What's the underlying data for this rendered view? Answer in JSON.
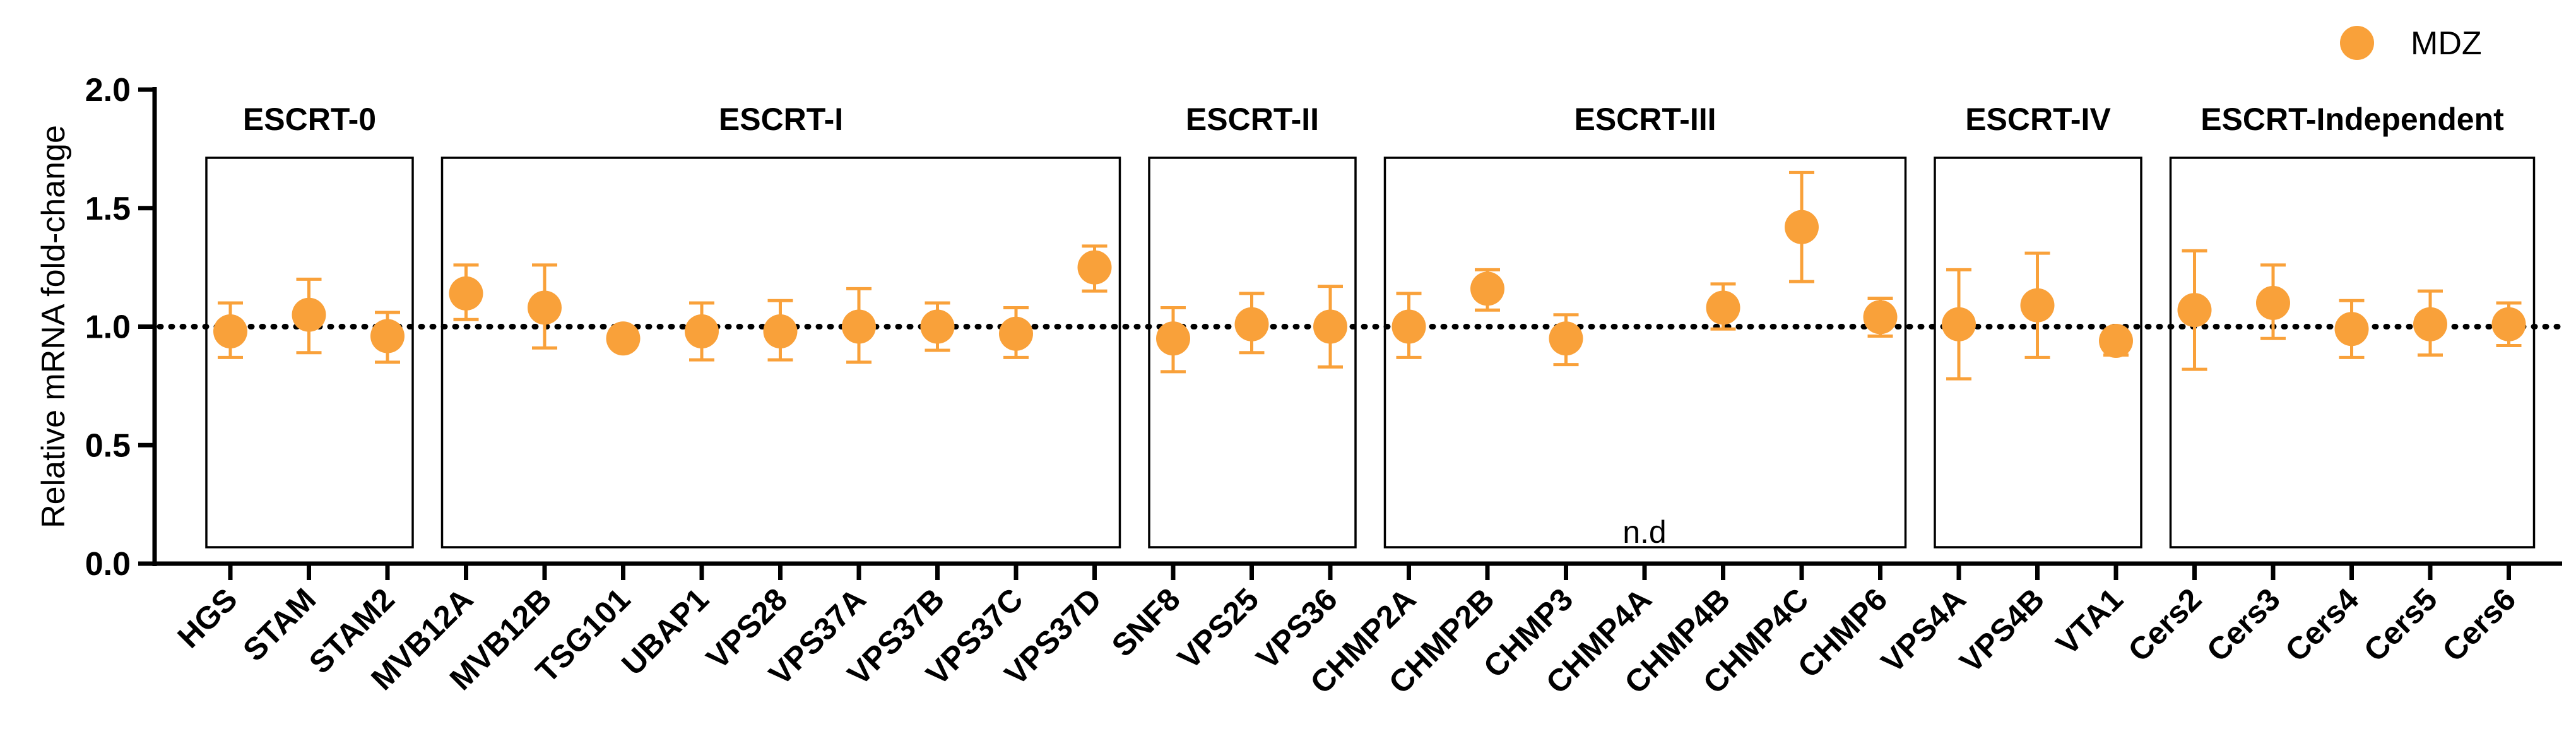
{
  "chart_data": {
    "type": "scatter",
    "title": "",
    "xlabel": "",
    "ylabel": "Relative mRNA fold-change",
    "ylim": [
      0,
      2
    ],
    "yticks": [
      "0.0",
      "0.5",
      "1.0",
      "1.5",
      "2.0"
    ],
    "reference_line": 1.0,
    "legend": {
      "label": "MDZ",
      "color": "#F9A13A",
      "placement": "top-right"
    },
    "categories": [
      "HGS",
      "STAM",
      "STAM2",
      "MVB12A",
      "MVB12B",
      "TSG101",
      "UBAP1",
      "VPS28",
      "VPS37A",
      "VPS37B",
      "VPS37C",
      "VPS37D",
      "SNF8",
      "VPS25",
      "VPS36",
      "CHMP2A",
      "CHMP2B",
      "CHMP3",
      "CHMP4A",
      "CHMP4B",
      "CHMP4C",
      "CHMP6",
      "VPS4A",
      "VPS4B",
      "VTA1",
      "Cers2",
      "Cers3",
      "Cers4",
      "Cers5",
      "Cers6"
    ],
    "series": [
      {
        "name": "MDZ",
        "values": [
          0.98,
          1.05,
          0.96,
          1.14,
          1.08,
          0.95,
          0.98,
          0.98,
          1.0,
          1.0,
          0.97,
          1.25,
          0.95,
          1.01,
          1.0,
          1.0,
          1.16,
          0.95,
          null,
          1.08,
          1.42,
          1.04,
          1.01,
          1.09,
          0.94,
          1.07,
          1.1,
          0.99,
          1.01,
          1.01
        ],
        "err_low": [
          0.87,
          0.89,
          0.85,
          1.03,
          0.91,
          null,
          0.86,
          0.86,
          0.85,
          0.9,
          0.87,
          1.15,
          0.81,
          0.89,
          0.83,
          0.87,
          1.07,
          0.84,
          null,
          0.99,
          1.19,
          0.96,
          0.78,
          0.87,
          0.88,
          0.82,
          0.95,
          0.87,
          0.88,
          0.92
        ],
        "err_high": [
          1.1,
          1.2,
          1.06,
          1.26,
          1.26,
          null,
          1.1,
          1.11,
          1.16,
          1.1,
          1.08,
          1.34,
          1.08,
          1.14,
          1.17,
          1.14,
          1.24,
          1.05,
          null,
          1.18,
          1.65,
          1.12,
          1.24,
          1.31,
          0.97,
          1.32,
          1.26,
          1.11,
          1.15,
          1.1
        ]
      }
    ],
    "groups": [
      {
        "title": "ESCRT-0",
        "first": 0,
        "last": 2
      },
      {
        "title": "ESCRT-I",
        "first": 3,
        "last": 11
      },
      {
        "title": "ESCRT-II",
        "first": 12,
        "last": 14
      },
      {
        "title": "ESCRT-III",
        "first": 15,
        "last": 21
      },
      {
        "title": "ESCRT-IV",
        "first": 22,
        "last": 24
      },
      {
        "title": "ESCRT-Independent",
        "first": 25,
        "last": 29
      }
    ],
    "annotations": [
      {
        "text": "n.d",
        "category": "CHMP4A"
      }
    ]
  }
}
